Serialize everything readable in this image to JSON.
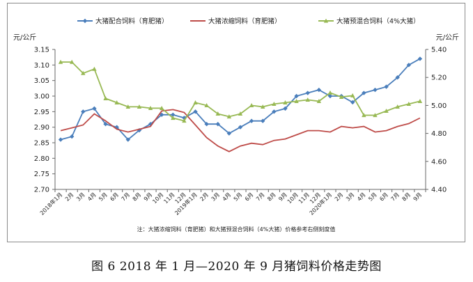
{
  "caption": "图 6   2018 年 1 月—2020 年 9 月猪饲料价格走势图",
  "chart_data": {
    "type": "line",
    "title": "",
    "left_unit": "元/公斤",
    "right_unit": "元/公斤",
    "ylim_left": [
      2.7,
      3.15
    ],
    "yticks_left": [
      "2.70",
      "2.75",
      "2.80",
      "2.85",
      "2.90",
      "2.95",
      "3.00",
      "3.05",
      "3.10",
      "3.15"
    ],
    "ylim_right": [
      4.4,
      5.4
    ],
    "yticks_right": [
      "4.40",
      "4.60",
      "4.80",
      "5.00",
      "5.20",
      "5.40"
    ],
    "categories": [
      "2018年1月",
      "2月",
      "3月",
      "4月",
      "5月",
      "6月",
      "7月",
      "8月",
      "9月",
      "10月",
      "11月",
      "12月",
      "2019年1月",
      "2月",
      "3月",
      "4月",
      "5月",
      "6月",
      "7月",
      "8月",
      "9月",
      "10月",
      "11月",
      "12月",
      "2020年1月",
      "2月",
      "3月",
      "4月",
      "5月",
      "6月",
      "7月",
      "8月",
      "9月"
    ],
    "legend_position": "top",
    "note": "注：大猪浓缩饲料（育肥猪）和大猪预混合饲料（4%大猪）价格参考右侧刻度值",
    "series": [
      {
        "name": "大猪配合饲料（育肥猪）",
        "axis": "left",
        "color": "#4A7EBB",
        "marker": "diamond",
        "values": [
          2.86,
          2.87,
          2.95,
          2.96,
          2.91,
          2.9,
          2.86,
          2.89,
          2.91,
          2.94,
          2.94,
          2.93,
          2.95,
          2.91,
          2.91,
          2.88,
          2.9,
          2.92,
          2.92,
          2.95,
          2.96,
          3.0,
          3.01,
          3.02,
          3.0,
          3.0,
          2.98,
          3.01,
          3.02,
          3.03,
          3.06,
          3.1,
          3.12
        ]
      },
      {
        "name": "大猪浓缩饲料（育肥猪）",
        "axis": "right",
        "color": "#BE4B48",
        "marker": "none",
        "values": [
          4.82,
          4.84,
          4.86,
          4.94,
          4.89,
          4.83,
          4.81,
          4.83,
          4.85,
          4.96,
          4.97,
          4.95,
          4.86,
          4.77,
          4.71,
          4.67,
          4.71,
          4.73,
          4.72,
          4.75,
          4.76,
          4.79,
          4.82,
          4.82,
          4.81,
          4.85,
          4.84,
          4.85,
          4.81,
          4.82,
          4.85,
          4.87,
          4.91
        ]
      },
      {
        "name": "大猪预混合饲料（4%大猪）",
        "axis": "right",
        "color": "#98B954",
        "marker": "triangle",
        "values": [
          5.31,
          5.31,
          5.23,
          5.26,
          5.05,
          5.02,
          4.99,
          4.99,
          4.98,
          4.98,
          4.91,
          4.89,
          5.02,
          5.0,
          4.94,
          4.92,
          4.94,
          5.0,
          4.99,
          5.01,
          5.02,
          5.03,
          5.04,
          5.03,
          5.09,
          5.06,
          5.07,
          4.93,
          4.93,
          4.96,
          4.99,
          5.01,
          5.03
        ]
      }
    ]
  }
}
